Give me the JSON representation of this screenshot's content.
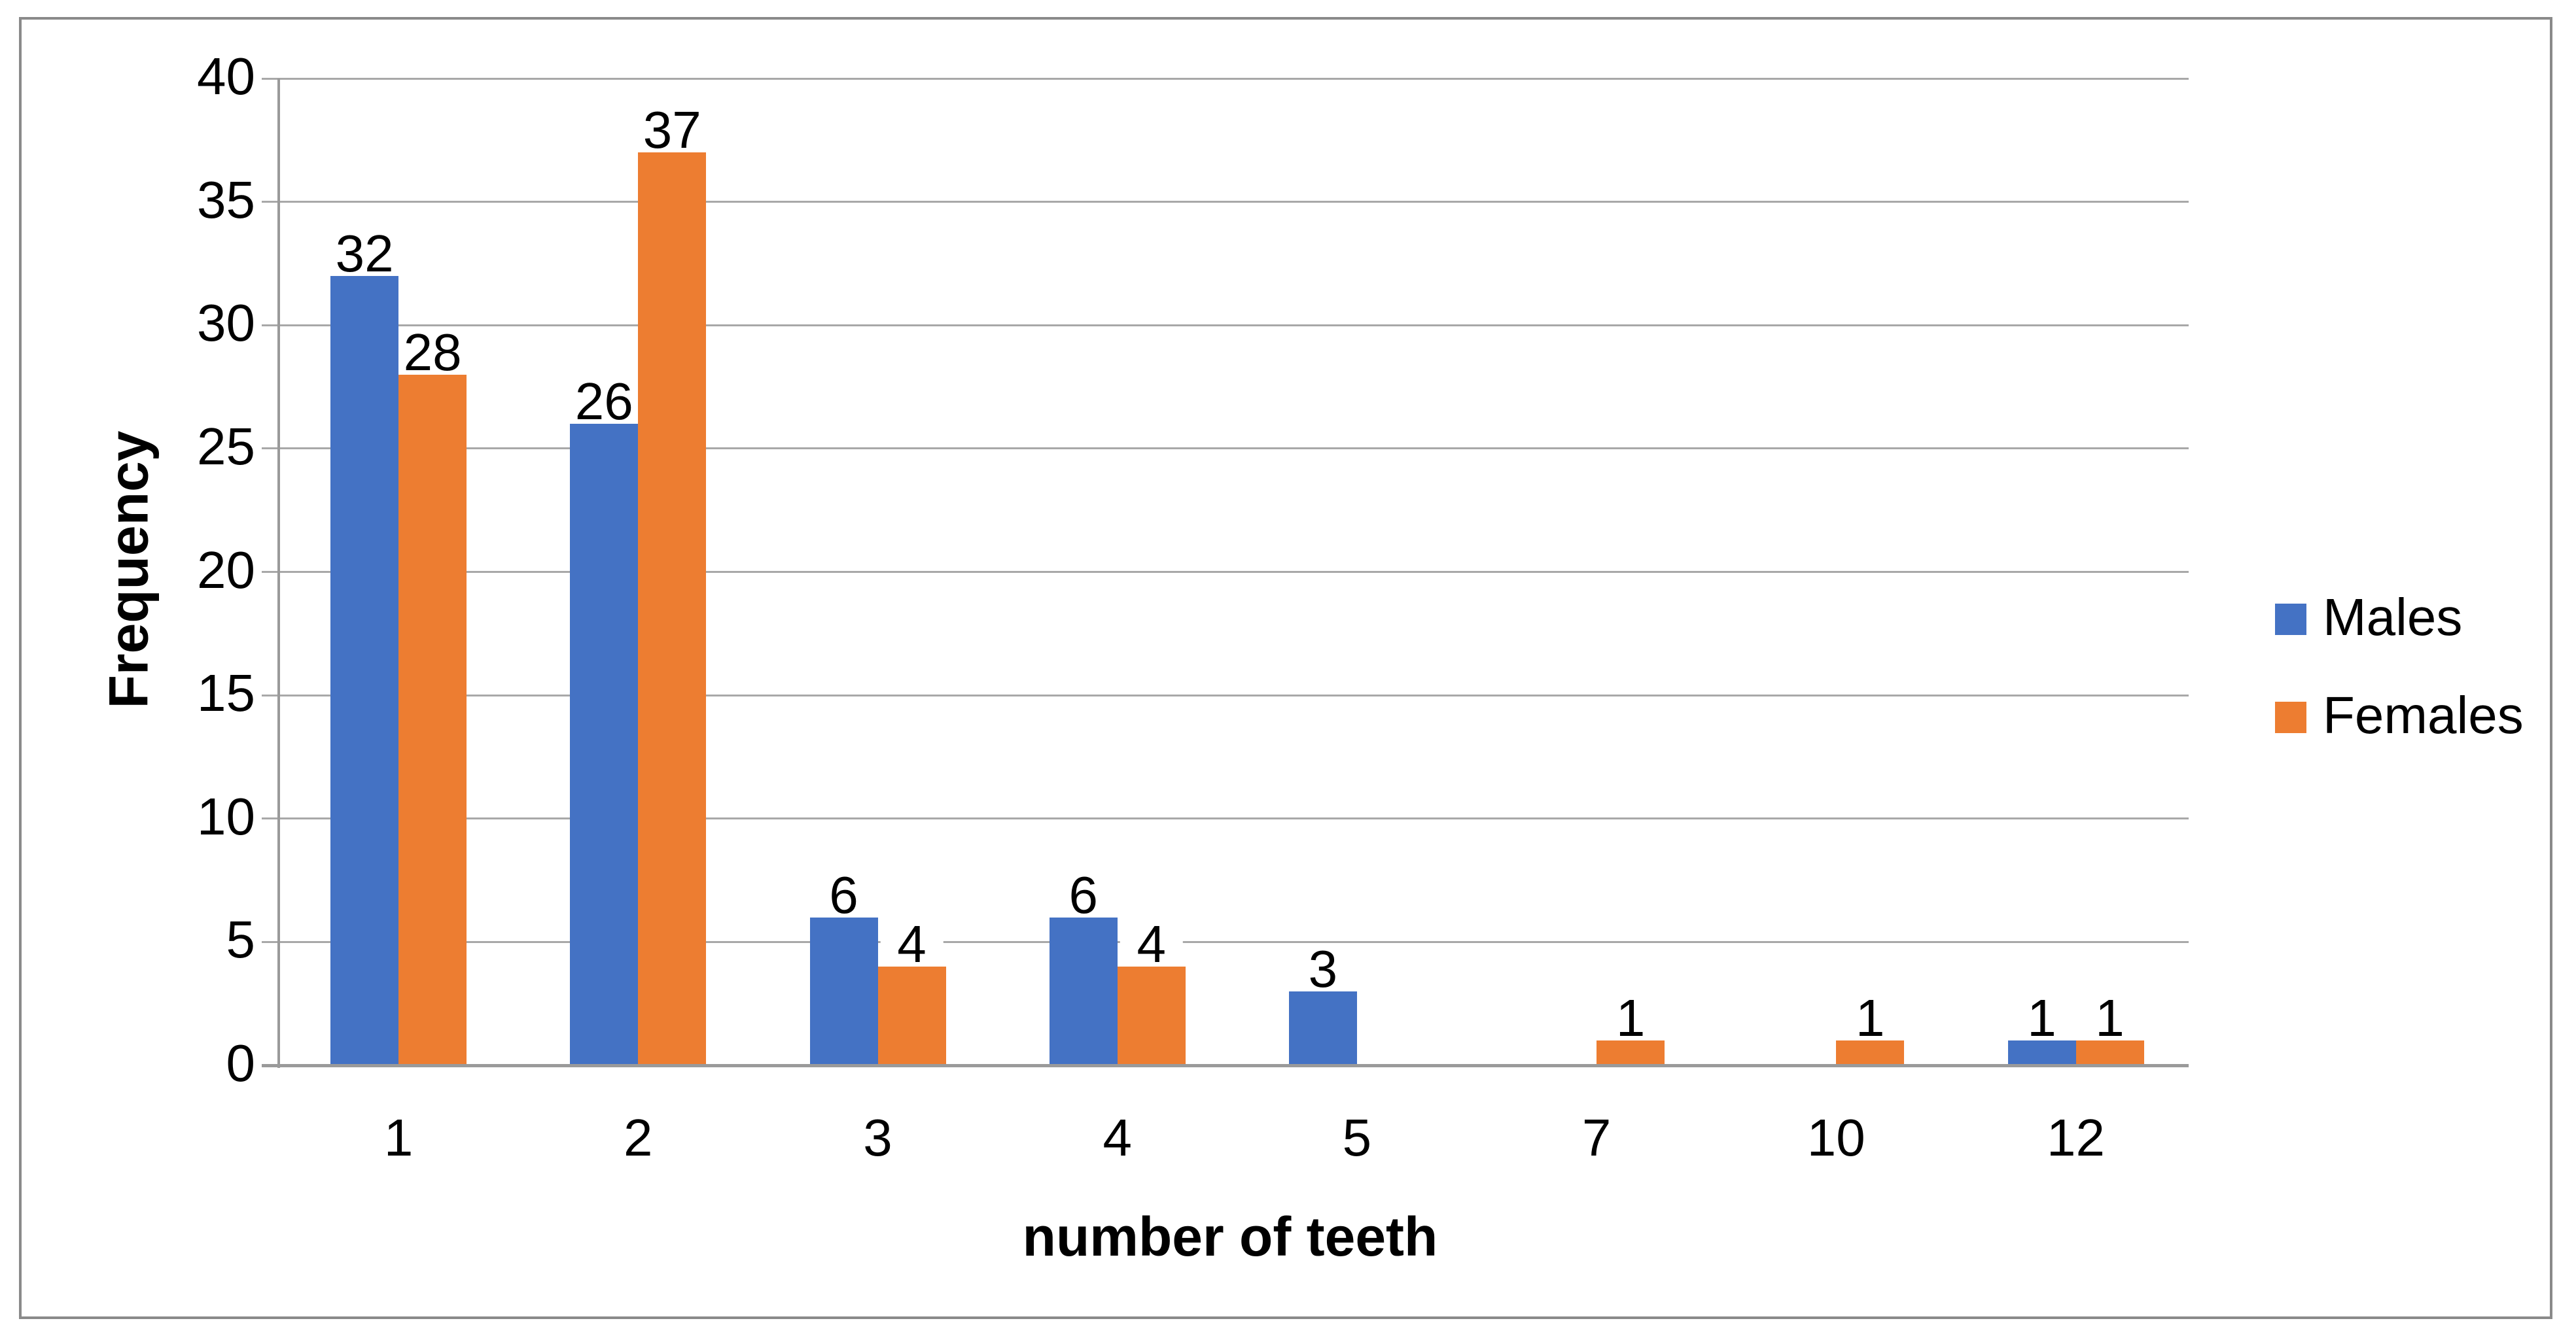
{
  "chart_data": {
    "type": "bar",
    "categories": [
      "1",
      "2",
      "3",
      "4",
      "5",
      "7",
      "10",
      "12"
    ],
    "series": [
      {
        "name": "Males",
        "color": "#4472C4",
        "values": [
          32,
          26,
          6,
          6,
          3,
          0,
          0,
          1
        ]
      },
      {
        "name": "Females",
        "color": "#ED7D31",
        "values": [
          28,
          37,
          4,
          4,
          0,
          1,
          1,
          1
        ]
      }
    ],
    "title": "",
    "xlabel": "number of teeth",
    "ylabel": "Frequency",
    "ylim": [
      0,
      40
    ],
    "y_ticks": [
      0,
      5,
      10,
      15,
      20,
      25,
      30,
      35,
      40
    ],
    "grid": true,
    "legend_position": "right",
    "data_labels_shown": true,
    "zero_values_hidden": true,
    "colors": {
      "gridline": "#A8A8A8",
      "axis": "#9A9A9A",
      "frame_border": "#8A8A8A",
      "label_text": "#000000",
      "background": "#FFFFFF"
    }
  }
}
